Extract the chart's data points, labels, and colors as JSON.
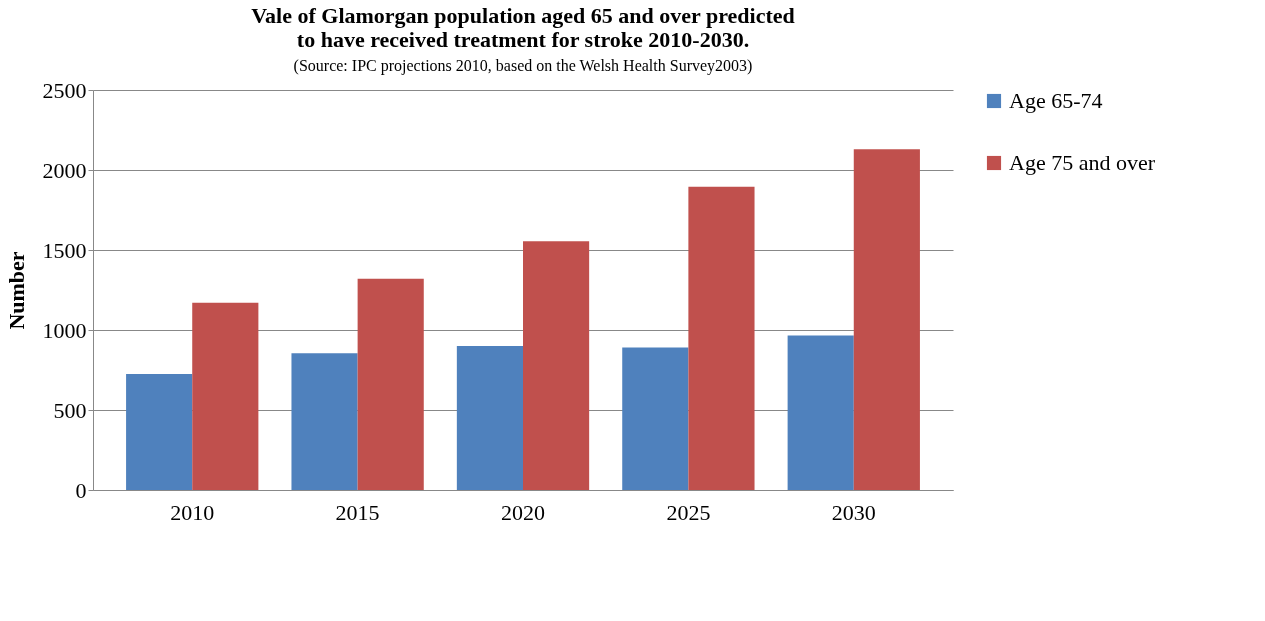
{
  "chart_data": {
    "type": "bar",
    "title": "Vale of Glamorgan population aged 65 and over predicted\nto have received treatment for stroke 2010-2030.",
    "annotations": [
      "(Source: IPC projections 2010, based on the Welsh Health Survey2003)"
    ],
    "ylabel": "Number",
    "categories": [
      "2010",
      "2015",
      "2020",
      "2025",
      "2030"
    ],
    "series": [
      {
        "name": "Age 65-74",
        "color": "#4f81bd",
        "values": [
          725,
          855,
          900,
          890,
          965
        ]
      },
      {
        "name": "Age 75 and over",
        "color": "#c0504d",
        "values": [
          1170,
          1320,
          1555,
          1895,
          2130
        ]
      }
    ],
    "ylim": [
      0,
      2500
    ],
    "yticks": [
      0,
      500,
      1000,
      1500,
      2000,
      2500
    ],
    "grid": "y",
    "legend": "right"
  }
}
